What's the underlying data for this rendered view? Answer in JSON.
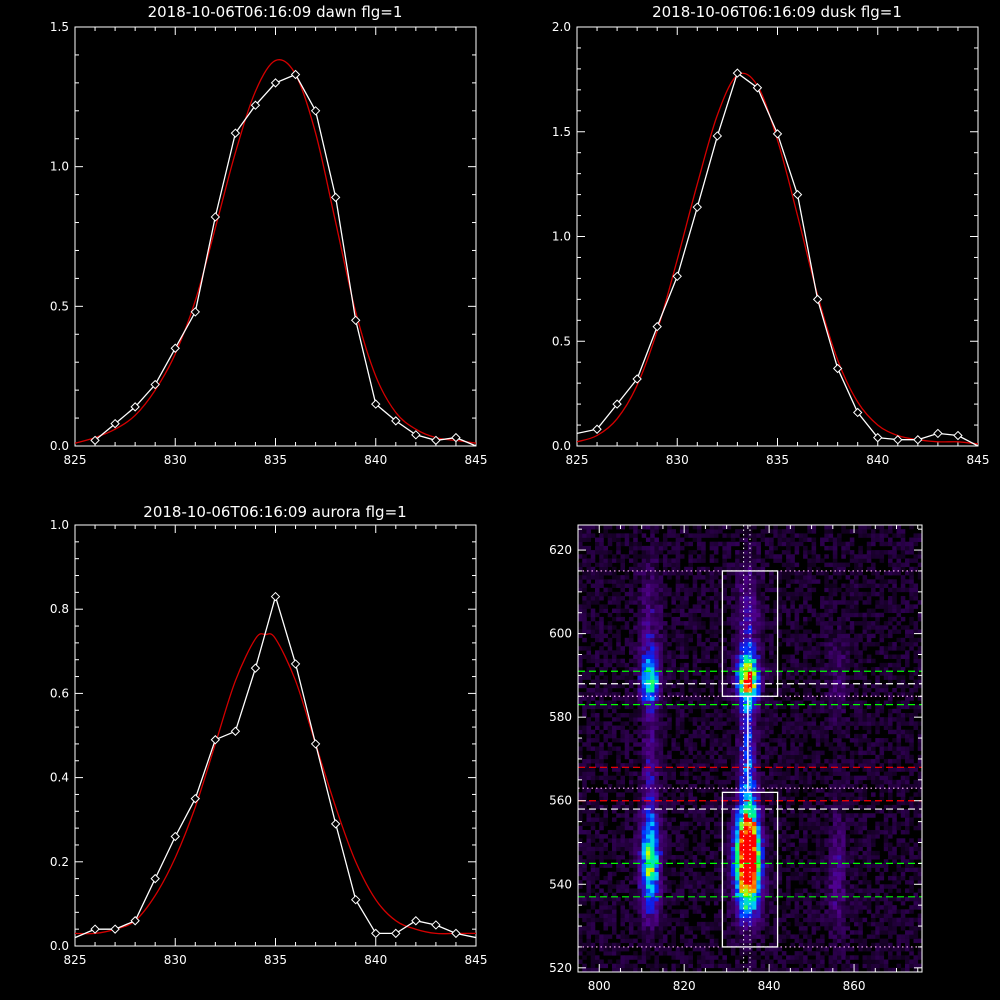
{
  "chart_data": [
    {
      "type": "line",
      "title": "2018-10-06T06:16:09 dawn flg=1",
      "xlabel": "",
      "ylabel": "",
      "xlim": [
        825,
        845
      ],
      "ylim": [
        0,
        1.5
      ],
      "xticks": [
        825,
        830,
        835,
        840,
        845
      ],
      "yticks": [
        0.0,
        0.5,
        1.0,
        1.5
      ],
      "ytick_labels": [
        "0.0",
        "0.5",
        "1.0",
        "1.5"
      ],
      "series": [
        {
          "color": "#ffffff",
          "markers": "diamond",
          "x": [
            826,
            827,
            828,
            829,
            830,
            831,
            832,
            833,
            834,
            835,
            836,
            837,
            838,
            839,
            840,
            841,
            842,
            843,
            844,
            845
          ],
          "y": [
            0.02,
            0.08,
            0.14,
            0.22,
            0.35,
            0.48,
            0.82,
            1.12,
            1.22,
            1.3,
            1.33,
            1.2,
            0.89,
            0.45,
            0.15,
            0.09,
            0.04,
            0.02,
            0.03,
            0.0
          ]
        },
        {
          "color": "#d40000",
          "x": [
            825,
            826,
            827,
            828,
            829,
            830,
            831,
            832,
            833,
            834,
            835,
            836,
            837,
            838,
            839,
            840,
            841,
            842,
            843,
            844,
            845
          ],
          "y": [
            0.01,
            0.03,
            0.06,
            0.11,
            0.2,
            0.33,
            0.52,
            0.78,
            1.05,
            1.27,
            1.38,
            1.33,
            1.12,
            0.8,
            0.48,
            0.25,
            0.12,
            0.06,
            0.03,
            0.02,
            0.01
          ]
        }
      ]
    },
    {
      "type": "line",
      "title": "2018-10-06T06:16:09 dusk flg=1",
      "xlabel": "",
      "ylabel": "",
      "xlim": [
        825,
        845
      ],
      "ylim": [
        0,
        2.0
      ],
      "xticks": [
        825,
        830,
        835,
        840,
        845
      ],
      "yticks": [
        0.0,
        0.5,
        1.0,
        1.5,
        2.0
      ],
      "ytick_labels": [
        "0.0",
        "0.5",
        "1.0",
        "1.5",
        "2.0"
      ],
      "series": [
        {
          "color": "#ffffff",
          "markers": "diamond",
          "x": [
            825,
            826,
            827,
            828,
            829,
            830,
            831,
            832,
            833,
            834,
            835,
            836,
            837,
            838,
            839,
            840,
            841,
            842,
            843,
            844,
            845
          ],
          "y": [
            0.06,
            0.08,
            0.2,
            0.32,
            0.57,
            0.81,
            1.14,
            1.48,
            1.78,
            1.71,
            1.49,
            1.2,
            0.7,
            0.37,
            0.16,
            0.04,
            0.03,
            0.03,
            0.06,
            0.05,
            0.0
          ]
        },
        {
          "color": "#d40000",
          "x": [
            825,
            826,
            827,
            828,
            829,
            830,
            831,
            832,
            833,
            834,
            835,
            836,
            837,
            838,
            839,
            840,
            841,
            842,
            843,
            844,
            845
          ],
          "y": [
            0.02,
            0.05,
            0.13,
            0.29,
            0.55,
            0.89,
            1.25,
            1.58,
            1.77,
            1.72,
            1.46,
            1.1,
            0.72,
            0.41,
            0.21,
            0.1,
            0.05,
            0.03,
            0.02,
            0.02,
            0.01
          ]
        }
      ]
    },
    {
      "type": "line",
      "title": "2018-10-06T06:16:09 aurora flg=1",
      "xlabel": "",
      "ylabel": "",
      "xlim": [
        825,
        845
      ],
      "ylim": [
        0,
        1.0
      ],
      "xticks": [
        825,
        830,
        835,
        840,
        845
      ],
      "yticks": [
        0.0,
        0.2,
        0.4,
        0.6,
        0.8,
        1.0
      ],
      "ytick_labels": [
        "0.0",
        "0.2",
        "0.4",
        "0.6",
        "0.8",
        "1.0"
      ],
      "series": [
        {
          "color": "#ffffff",
          "markers": "diamond",
          "x": [
            825,
            826,
            827,
            828,
            829,
            830,
            831,
            832,
            833,
            834,
            835,
            836,
            837,
            838,
            839,
            840,
            841,
            842,
            843,
            844,
            845
          ],
          "y": [
            0.02,
            0.04,
            0.04,
            0.06,
            0.16,
            0.26,
            0.35,
            0.49,
            0.51,
            0.66,
            0.83,
            0.67,
            0.48,
            0.29,
            0.11,
            0.03,
            0.03,
            0.06,
            0.05,
            0.03,
            0.02
          ]
        },
        {
          "color": "#d40000",
          "x": [
            825,
            826,
            827,
            828,
            829,
            830,
            831,
            832,
            833,
            834,
            834.5,
            835,
            836,
            837,
            838,
            839,
            840,
            841,
            842,
            843,
            844,
            845
          ],
          "y": [
            0.03,
            0.03,
            0.04,
            0.06,
            0.12,
            0.21,
            0.33,
            0.48,
            0.63,
            0.73,
            0.74,
            0.73,
            0.63,
            0.48,
            0.33,
            0.2,
            0.11,
            0.06,
            0.04,
            0.03,
            0.03,
            0.03
          ]
        }
      ]
    },
    {
      "type": "heatmap",
      "title": "",
      "xlim": [
        795,
        876
      ],
      "ylim": [
        519,
        626
      ],
      "xticks": [
        800,
        820,
        840,
        860
      ],
      "yticks": [
        520,
        540,
        560,
        580,
        600,
        620
      ],
      "blobs": [
        {
          "x": 812,
          "y": 545,
          "sx": 1.6,
          "sy": 8,
          "amp": 0.62
        },
        {
          "x": 812,
          "y": 589,
          "sx": 1.5,
          "sy": 4,
          "amp": 0.48
        },
        {
          "x": 812,
          "y": 566,
          "sx": 1.2,
          "sy": 12,
          "amp": 0.18
        },
        {
          "x": 812,
          "y": 600,
          "sx": 1.8,
          "sy": 12,
          "amp": 0.16
        },
        {
          "x": 835,
          "y": 543,
          "sx": 2.0,
          "sy": 7,
          "amp": 1.0
        },
        {
          "x": 835,
          "y": 552,
          "sx": 1.8,
          "sy": 7,
          "amp": 0.65
        },
        {
          "x": 835,
          "y": 589,
          "sx": 1.7,
          "sy": 4,
          "amp": 0.8
        },
        {
          "x": 835,
          "y": 571,
          "sx": 1.3,
          "sy": 11,
          "amp": 0.32
        },
        {
          "x": 835,
          "y": 603,
          "sx": 1.8,
          "sy": 10,
          "amp": 0.22
        },
        {
          "x": 856,
          "y": 543,
          "sx": 1.5,
          "sy": 10,
          "amp": 0.17
        },
        {
          "x": 856,
          "y": 590,
          "sx": 1.5,
          "sy": 8,
          "amp": 0.12
        }
      ],
      "boxes": [
        {
          "x0": 829,
          "x1": 842,
          "y0": 585,
          "y1": 615,
          "color": "#ffffff"
        },
        {
          "x0": 829,
          "x1": 842,
          "y0": 525,
          "y1": 562,
          "color": "#ffffff"
        }
      ],
      "hlines": [
        {
          "y": 591,
          "color": "#00ff00",
          "style": "dashed"
        },
        {
          "y": 583,
          "color": "#00ff00",
          "style": "dashed"
        },
        {
          "y": 545,
          "color": "#00ff00",
          "style": "dashed"
        },
        {
          "y": 537,
          "color": "#00ff00",
          "style": "dashed"
        },
        {
          "y": 568,
          "color": "#ff0000",
          "style": "dashed"
        },
        {
          "y": 560,
          "color": "#ff0000",
          "style": "dashed"
        },
        {
          "y": 588,
          "color": "#ffffff",
          "style": "dashed"
        },
        {
          "y": 558,
          "color": "#ffffff",
          "style": "dashed"
        },
        {
          "y": 615,
          "color": "#ffb0ff",
          "style": "dotted"
        },
        {
          "y": 585,
          "color": "#ffb0ff",
          "style": "dotted"
        },
        {
          "y": 563,
          "color": "#ffb0ff",
          "style": "dotted"
        },
        {
          "y": 525,
          "color": "#ffb0ff",
          "style": "dotted"
        }
      ],
      "vlines": [
        {
          "x": 834,
          "color": "#ffffff",
          "style": "dotted"
        },
        {
          "x": 835.5,
          "color": "#ffffff",
          "style": "dotted"
        }
      ],
      "ridge": {
        "x": 835,
        "y0": 562,
        "y1": 585,
        "color": "#ffffff"
      }
    }
  ]
}
